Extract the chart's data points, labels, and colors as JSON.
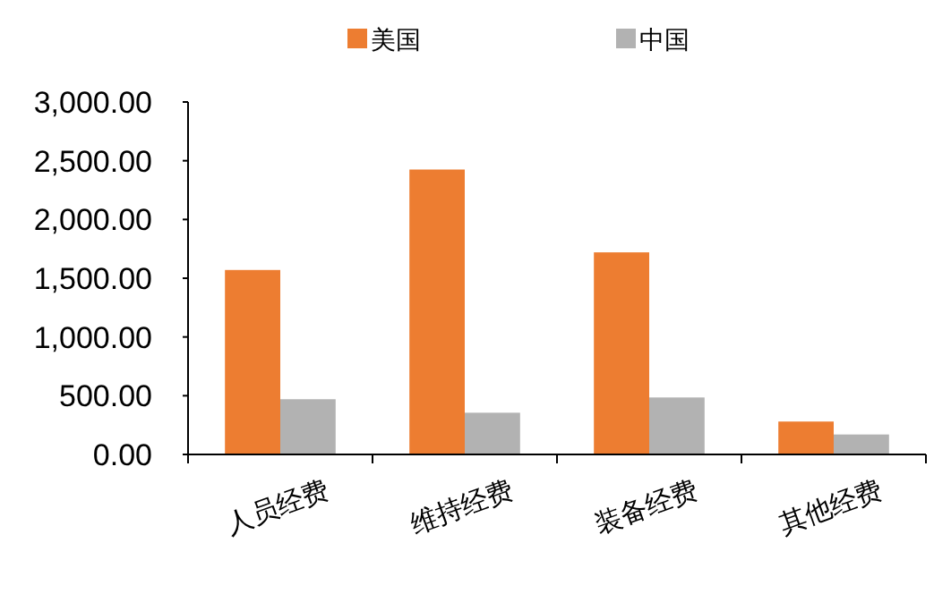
{
  "chart_data": {
    "type": "bar",
    "categories": [
      "人员经费",
      "维持经费",
      "装备经费",
      "其他经费"
    ],
    "series": [
      {
        "name": "美国",
        "color": "#ed7d31",
        "values": [
          1570,
          2425,
          1720,
          280
        ]
      },
      {
        "name": "中国",
        "color": "#b2b2b2",
        "values": [
          470,
          355,
          485,
          170
        ]
      }
    ],
    "ylim": [
      0,
      3000
    ],
    "yticks": [
      {
        "value": 0,
        "label": "0.00"
      },
      {
        "value": 500,
        "label": "500.00"
      },
      {
        "value": 1000,
        "label": "1,000.00"
      },
      {
        "value": 1500,
        "label": "1,500.00"
      },
      {
        "value": 2000,
        "label": "2,000.00"
      },
      {
        "value": 2500,
        "label": "2,500.00"
      },
      {
        "value": 3000,
        "label": "3,000.00"
      }
    ],
    "grid": false,
    "legend": "top"
  }
}
